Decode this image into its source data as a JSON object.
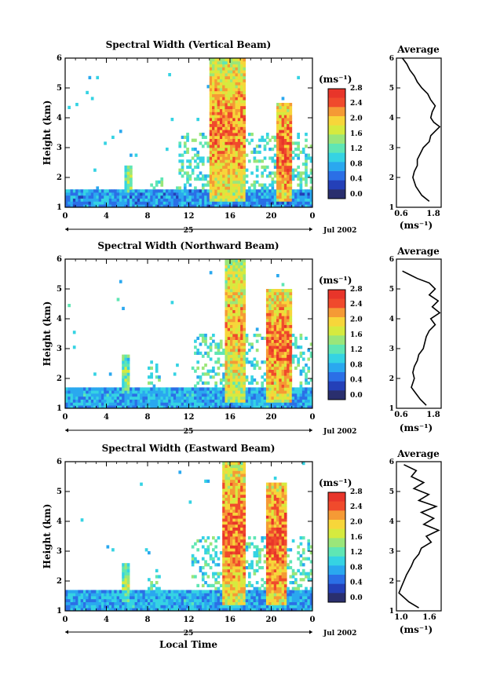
{
  "figure": {
    "panels": [
      {
        "title": "Spectral Width (Vertical Beam)",
        "ylabel": "Height (km)",
        "date_day": "25",
        "date_month": "Jul 2002",
        "colorbar_unit": "(ms⁻¹)",
        "avg_title": "Average",
        "avg_unit": "(ms⁻¹)",
        "avg_ticks": [
          "0.6",
          "1.8"
        ]
      },
      {
        "title": "Spectral Width (Northward Beam)",
        "ylabel": "Height (km)",
        "date_day": "25",
        "date_month": "Jul 2002",
        "colorbar_unit": "(ms⁻¹)",
        "avg_title": "Average",
        "avg_unit": "(ms⁻¹)",
        "avg_ticks": [
          "0.6",
          "1.8"
        ]
      },
      {
        "title": "Spectral Width (Eastward Beam)",
        "ylabel": "Height (km)",
        "date_day": "25",
        "date_month": "Jul 2002",
        "colorbar_unit": "(ms⁻¹)",
        "avg_title": "Average",
        "avg_unit": "(ms⁻¹)",
        "avg_ticks": [
          "1.0",
          "1.6"
        ],
        "xlabel": "Local Time"
      }
    ],
    "x_ticks": [
      "0",
      "4",
      "8",
      "12",
      "16",
      "20",
      "0"
    ],
    "y_ticks": [
      "1",
      "2",
      "3",
      "4",
      "5",
      "6"
    ],
    "colorbar_ticks": [
      "0.0",
      "0.4",
      "0.8",
      "1.2",
      "1.6",
      "2.0",
      "2.4",
      "2.8"
    ],
    "colors": [
      "#2a2f6e",
      "#2440b8",
      "#2b6fe6",
      "#2aa8ef",
      "#35d3e3",
      "#5fe6b4",
      "#9ae67a",
      "#d6ea3f",
      "#f7d63a",
      "#f59a35",
      "#f04a2c",
      "#e8352a"
    ]
  },
  "chart_data": [
    {
      "type": "heatmap",
      "title": "Spectral Width (Vertical Beam)",
      "xlabel": "",
      "ylabel": "Height (km)",
      "xlim": [
        0,
        24
      ],
      "ylim": [
        1,
        6
      ],
      "colorbar": {
        "label": "(ms⁻¹)",
        "range": [
          0.0,
          2.8
        ]
      },
      "features": [
        {
          "t0": 0,
          "t1": 24,
          "h0": 1.0,
          "h1": 1.6,
          "level": 0.7
        },
        {
          "t0": 5.8,
          "t1": 6.4,
          "h0": 1.5,
          "h1": 2.4,
          "level": 1.5
        },
        {
          "t0": 14,
          "t1": 17.5,
          "h0": 1.2,
          "h1": 6.0,
          "level": 2.4
        },
        {
          "t0": 20.5,
          "t1": 22,
          "h0": 1.2,
          "h1": 4.5,
          "level": 2.6
        }
      ],
      "average_profile": {
        "x": [
          0.6,
          0.75,
          0.85,
          1.0,
          1.1,
          1.25,
          1.45,
          1.55,
          1.7,
          1.6,
          1.55,
          1.65,
          1.85,
          1.7,
          1.55,
          1.5,
          1.3,
          1.2,
          1.1,
          1.1,
          1.0,
          0.95,
          1.05,
          1.25,
          1.5
        ],
        "y": [
          6.0,
          5.8,
          5.6,
          5.4,
          5.2,
          5.0,
          4.8,
          4.6,
          4.4,
          4.2,
          4.0,
          3.85,
          3.7,
          3.55,
          3.4,
          3.2,
          3.0,
          2.8,
          2.6,
          2.4,
          2.2,
          2.0,
          1.7,
          1.4,
          1.2
        ],
        "xlabel": "(ms⁻¹)",
        "xlim": [
          0.4,
          1.9
        ],
        "ylim": [
          1,
          6
        ]
      }
    },
    {
      "type": "heatmap",
      "title": "Spectral Width (Northward Beam)",
      "xlabel": "",
      "ylabel": "Height (km)",
      "xlim": [
        0,
        24
      ],
      "ylim": [
        1,
        6
      ],
      "colorbar": {
        "label": "(ms⁻¹)",
        "range": [
          0.0,
          2.8
        ]
      },
      "features": [
        {
          "t0": 0,
          "t1": 24,
          "h0": 1.0,
          "h1": 1.7,
          "level": 0.8
        },
        {
          "t0": 5.5,
          "t1": 6.2,
          "h0": 1.5,
          "h1": 2.8,
          "level": 1.5
        },
        {
          "t0": 15.5,
          "t1": 17.5,
          "h0": 1.2,
          "h1": 6.0,
          "level": 2.2
        },
        {
          "t0": 19.5,
          "t1": 22,
          "h0": 1.2,
          "h1": 5.0,
          "level": 2.5
        }
      ],
      "average_profile": {
        "x": [
          0.6,
          0.8,
          1.1,
          1.5,
          1.7,
          1.5,
          1.8,
          1.6,
          1.85,
          1.55,
          1.7,
          1.5,
          1.4,
          1.35,
          1.3,
          1.15,
          1.1,
          1.0,
          0.95,
          1.0,
          0.9,
          1.05,
          1.2,
          1.4
        ],
        "y": [
          5.6,
          5.5,
          5.35,
          5.2,
          5.0,
          4.8,
          4.6,
          4.4,
          4.2,
          4.0,
          3.8,
          3.6,
          3.4,
          3.2,
          3.0,
          2.8,
          2.6,
          2.4,
          2.2,
          2.0,
          1.7,
          1.5,
          1.3,
          1.1
        ],
        "xlabel": "(ms⁻¹)",
        "xlim": [
          0.4,
          1.9
        ],
        "ylim": [
          1,
          6
        ]
      }
    },
    {
      "type": "heatmap",
      "title": "Spectral Width (Eastward Beam)",
      "xlabel": "Local Time",
      "ylabel": "Height (km)",
      "xlim": [
        0,
        24
      ],
      "ylim": [
        1,
        6
      ],
      "colorbar": {
        "label": "(ms⁻¹)",
        "range": [
          0.0,
          2.8
        ]
      },
      "features": [
        {
          "t0": 0,
          "t1": 24,
          "h0": 1.0,
          "h1": 1.7,
          "level": 0.8
        },
        {
          "t0": 5.6,
          "t1": 6.2,
          "h0": 1.3,
          "h1": 2.6,
          "level": 1.6
        },
        {
          "t0": 15.2,
          "t1": 17.6,
          "h0": 1.2,
          "h1": 6.0,
          "level": 2.5
        },
        {
          "t0": 19.5,
          "t1": 21.5,
          "h0": 1.2,
          "h1": 5.3,
          "level": 2.6
        }
      ],
      "average_profile": {
        "x": [
          1.1,
          1.35,
          1.25,
          1.5,
          1.3,
          1.6,
          1.4,
          1.75,
          1.45,
          1.7,
          1.5,
          1.8,
          1.55,
          1.65,
          1.45,
          1.4,
          1.3,
          1.25,
          1.15,
          1.1,
          1.05,
          1.0,
          1.2,
          1.4
        ],
        "y": [
          5.9,
          5.7,
          5.5,
          5.3,
          5.1,
          4.9,
          4.7,
          4.5,
          4.3,
          4.1,
          3.9,
          3.7,
          3.5,
          3.3,
          3.1,
          2.9,
          2.7,
          2.5,
          2.2,
          2.0,
          1.8,
          1.6,
          1.3,
          1.1
        ],
        "xlabel": "(ms⁻¹)",
        "xlim": [
          0.95,
          1.85
        ],
        "ylim": [
          1,
          6
        ]
      }
    }
  ]
}
